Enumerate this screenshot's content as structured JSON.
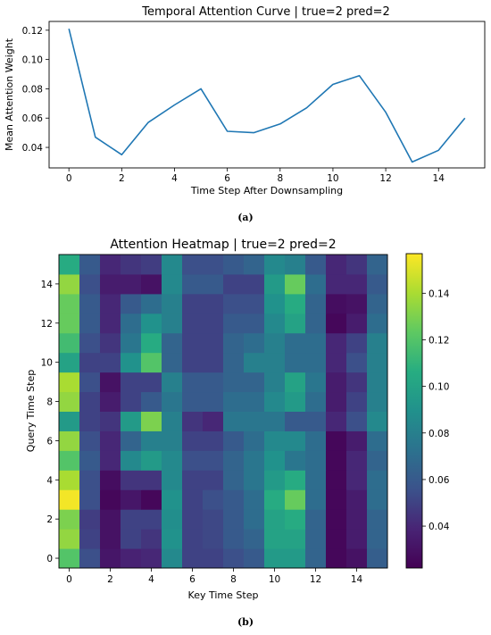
{
  "chart_data": [
    {
      "type": "line",
      "title": "Temporal Attention Curve | true=2 pred=2",
      "xlabel": "Time Step After Downsampling",
      "ylabel": "Mean Attention Weight",
      "x": [
        0,
        1,
        2,
        3,
        4,
        5,
        6,
        7,
        8,
        9,
        10,
        11,
        12,
        13,
        14,
        15
      ],
      "values": [
        0.121,
        0.047,
        0.035,
        0.057,
        0.069,
        0.08,
        0.051,
        0.05,
        0.056,
        0.067,
        0.083,
        0.089,
        0.064,
        0.03,
        0.038,
        0.06
      ],
      "xlim": [
        -0.75,
        15.75
      ],
      "ylim": [
        0.026,
        0.126
      ],
      "xticks": [
        "0",
        "2",
        "4",
        "6",
        "8",
        "10",
        "12",
        "14"
      ],
      "yticks": [
        "0.04",
        "0.06",
        "0.08",
        "0.10",
        "0.12"
      ],
      "line_color": "#1f77b4",
      "grid": false
    },
    {
      "type": "heatmap",
      "title": "Attention Heatmap | true=2 pred=2",
      "xlabel": "Key Time Step",
      "ylabel": "Query Time Step",
      "colormap": "viridis",
      "vmin": 0.022,
      "vmax": 0.157,
      "xticks": [
        "0",
        "2",
        "4",
        "6",
        "8",
        "10",
        "12",
        "14"
      ],
      "yticks": [
        "0",
        "2",
        "4",
        "6",
        "8",
        "10",
        "12",
        "14"
      ],
      "colorbar_ticks": [
        "0.04",
        "0.06",
        "0.08",
        "0.10",
        "0.12",
        "0.14"
      ],
      "rows": [
        [
          0.12,
          0.055,
          0.032,
          0.038,
          0.04,
          0.085,
          0.05,
          0.05,
          0.055,
          0.06,
          0.095,
          0.095,
          0.065,
          0.025,
          0.03,
          0.062
        ],
        [
          0.135,
          0.05,
          0.03,
          0.05,
          0.045,
          0.09,
          0.05,
          0.052,
          0.06,
          0.065,
          0.1,
          0.1,
          0.065,
          0.025,
          0.035,
          0.065
        ],
        [
          0.13,
          0.048,
          0.03,
          0.05,
          0.05,
          0.088,
          0.05,
          0.052,
          0.06,
          0.07,
          0.1,
          0.105,
          0.065,
          0.025,
          0.035,
          0.065
        ],
        [
          0.155,
          0.055,
          0.025,
          0.032,
          0.025,
          0.09,
          0.05,
          0.055,
          0.06,
          0.07,
          0.105,
          0.125,
          0.07,
          0.025,
          0.035,
          0.07
        ],
        [
          0.14,
          0.055,
          0.028,
          0.045,
          0.045,
          0.085,
          0.05,
          0.05,
          0.065,
          0.075,
          0.095,
          0.105,
          0.07,
          0.025,
          0.04,
          0.07
        ],
        [
          0.12,
          0.06,
          0.04,
          0.085,
          0.095,
          0.085,
          0.055,
          0.055,
          0.065,
          0.075,
          0.09,
          0.075,
          0.07,
          0.025,
          0.04,
          0.065
        ],
        [
          0.135,
          0.055,
          0.04,
          0.065,
          0.08,
          0.08,
          0.05,
          0.05,
          0.06,
          0.07,
          0.085,
          0.085,
          0.07,
          0.025,
          0.035,
          0.07
        ],
        [
          0.095,
          0.05,
          0.045,
          0.095,
          0.13,
          0.08,
          0.045,
          0.04,
          0.075,
          0.075,
          0.075,
          0.06,
          0.06,
          0.04,
          0.055,
          0.085
        ],
        [
          0.135,
          0.05,
          0.035,
          0.05,
          0.06,
          0.075,
          0.06,
          0.06,
          0.07,
          0.07,
          0.085,
          0.095,
          0.07,
          0.035,
          0.05,
          0.08
        ],
        [
          0.14,
          0.055,
          0.03,
          0.05,
          0.05,
          0.08,
          0.06,
          0.06,
          0.065,
          0.065,
          0.08,
          0.1,
          0.075,
          0.035,
          0.045,
          0.08
        ],
        [
          0.1,
          0.05,
          0.05,
          0.09,
          0.12,
          0.065,
          0.05,
          0.05,
          0.065,
          0.08,
          0.08,
          0.07,
          0.07,
          0.04,
          0.055,
          0.08
        ],
        [
          0.115,
          0.055,
          0.045,
          0.075,
          0.105,
          0.065,
          0.05,
          0.05,
          0.065,
          0.07,
          0.08,
          0.07,
          0.07,
          0.04,
          0.05,
          0.08
        ],
        [
          0.125,
          0.06,
          0.04,
          0.07,
          0.09,
          0.08,
          0.05,
          0.05,
          0.06,
          0.06,
          0.085,
          0.1,
          0.065,
          0.025,
          0.035,
          0.07
        ],
        [
          0.125,
          0.06,
          0.04,
          0.06,
          0.07,
          0.08,
          0.05,
          0.05,
          0.055,
          0.055,
          0.09,
          0.105,
          0.065,
          0.028,
          0.03,
          0.065
        ],
        [
          0.135,
          0.055,
          0.035,
          0.035,
          0.03,
          0.085,
          0.06,
          0.06,
          0.05,
          0.05,
          0.095,
          0.125,
          0.07,
          0.04,
          0.04,
          0.06
        ],
        [
          0.105,
          0.06,
          0.04,
          0.045,
          0.048,
          0.085,
          0.055,
          0.055,
          0.06,
          0.065,
          0.085,
          0.08,
          0.06,
          0.04,
          0.045,
          0.065
        ]
      ]
    }
  ],
  "captions": {
    "a": "(a)",
    "b": "(b)"
  }
}
